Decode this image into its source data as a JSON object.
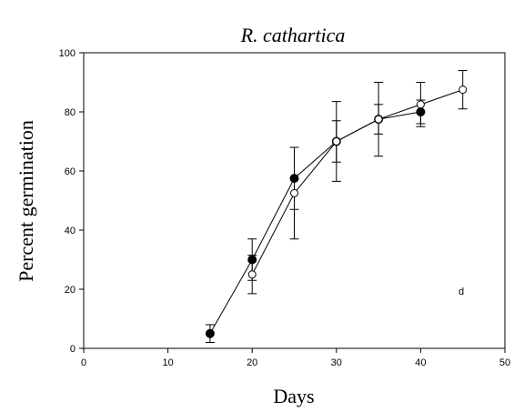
{
  "chart_data": {
    "type": "line",
    "title": "R. cathartica",
    "xlabel": "Days",
    "ylabel": "Percent germination",
    "xlim": [
      0,
      50
    ],
    "ylim": [
      0,
      100
    ],
    "xticks": [
      0,
      10,
      20,
      30,
      40,
      50
    ],
    "yticks": [
      0,
      20,
      40,
      60,
      80,
      100
    ],
    "grid": false,
    "annotation": "d",
    "series": [
      {
        "marker": "filled-circle",
        "x": [
          15,
          20,
          25,
          30,
          35,
          40
        ],
        "y": [
          5,
          30,
          57.5,
          70,
          77.5,
          80
        ],
        "err": [
          3,
          7,
          10.5,
          7,
          5,
          4
        ]
      },
      {
        "marker": "open-circle",
        "x": [
          20,
          25,
          30,
          35,
          40,
          45
        ],
        "y": [
          25,
          52.5,
          70,
          77.5,
          82.5,
          87.5
        ],
        "err": [
          6.5,
          15.5,
          13.5,
          12.5,
          7.5,
          6.5
        ]
      }
    ]
  }
}
